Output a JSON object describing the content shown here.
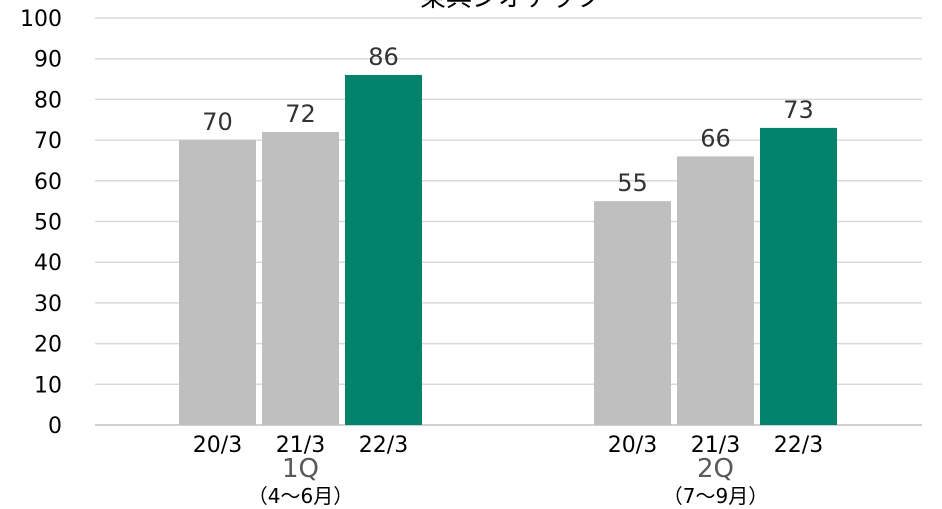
{
  "chart_data": {
    "type": "bar",
    "title": "東興ジオテック",
    "ylim": [
      0,
      100
    ],
    "yticks": [
      0,
      10,
      20,
      30,
      40,
      50,
      60,
      70,
      80,
      90,
      100
    ],
    "grid": true,
    "legend": "none",
    "groups": [
      {
        "label": "1Q",
        "sublabel": "（4～6月）",
        "bars": [
          {
            "category": "20/3",
            "value": 70
          },
          {
            "category": "21/3",
            "value": 72
          },
          {
            "category": "22/3",
            "value": 86
          }
        ]
      },
      {
        "label": "2Q",
        "sublabel": "（7～9月）",
        "bars": [
          {
            "category": "20/3",
            "value": 55
          },
          {
            "category": "21/3",
            "value": 66
          },
          {
            "category": "22/3",
            "value": 73
          }
        ]
      }
    ],
    "colors": {
      "past": "#bfbfbf",
      "current": "#00836a",
      "grid": "#d9d9d9",
      "axis": "#bfbfbf"
    }
  }
}
